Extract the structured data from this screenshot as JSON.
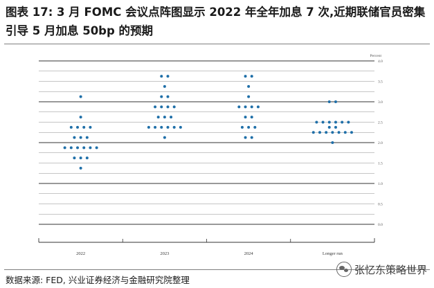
{
  "title": "图表 17: 3 月 FOMC 会议点阵图显示 2022 年全年加息 7 次,近期联储官员密集引导 5 月加息 50bp 的预期",
  "source": "数据来源: FED, 兴业证券经济与金融研究院整理",
  "watermark": "张忆东策略世界",
  "chart_data": {
    "type": "scatter",
    "title": "",
    "xlabel": "",
    "ylabel": "Percent",
    "categories": [
      "2022",
      "2023",
      "2024",
      "Longer run"
    ],
    "ylim": [
      0,
      4.0
    ],
    "yticks": [
      "0.0",
      "0.5",
      "1.0",
      "1.5",
      "2.0",
      "2.5",
      "3.0",
      "3.5",
      "4.0"
    ],
    "grid": true,
    "dot_color": "#1f6fa8",
    "series": [
      {
        "category": "2022",
        "dots": [
          {
            "y": 1.375,
            "count": 1
          },
          {
            "y": 1.625,
            "count": 3
          },
          {
            "y": 1.875,
            "count": 6
          },
          {
            "y": 2.125,
            "count": 3
          },
          {
            "y": 2.375,
            "count": 4
          },
          {
            "y": 2.625,
            "count": 1
          },
          {
            "y": 3.125,
            "count": 1
          }
        ]
      },
      {
        "category": "2023",
        "dots": [
          {
            "y": 2.125,
            "count": 1
          },
          {
            "y": 2.375,
            "count": 6
          },
          {
            "y": 2.625,
            "count": 3
          },
          {
            "y": 2.875,
            "count": 4
          },
          {
            "y": 3.125,
            "count": 2
          },
          {
            "y": 3.375,
            "count": 1
          },
          {
            "y": 3.625,
            "count": 2
          }
        ]
      },
      {
        "category": "2024",
        "dots": [
          {
            "y": 2.125,
            "count": 2
          },
          {
            "y": 2.375,
            "count": 3
          },
          {
            "y": 2.625,
            "count": 2
          },
          {
            "y": 2.875,
            "count": 4
          },
          {
            "y": 3.125,
            "count": 1
          },
          {
            "y": 3.375,
            "count": 1
          },
          {
            "y": 3.625,
            "count": 2
          }
        ]
      },
      {
        "category": "Longer run",
        "dots": [
          {
            "y": 2.0,
            "count": 1
          },
          {
            "y": 2.25,
            "count": 7
          },
          {
            "y": 2.375,
            "count": 2
          },
          {
            "y": 2.5,
            "count": 6
          },
          {
            "y": 3.0,
            "count": 2
          }
        ]
      }
    ]
  }
}
